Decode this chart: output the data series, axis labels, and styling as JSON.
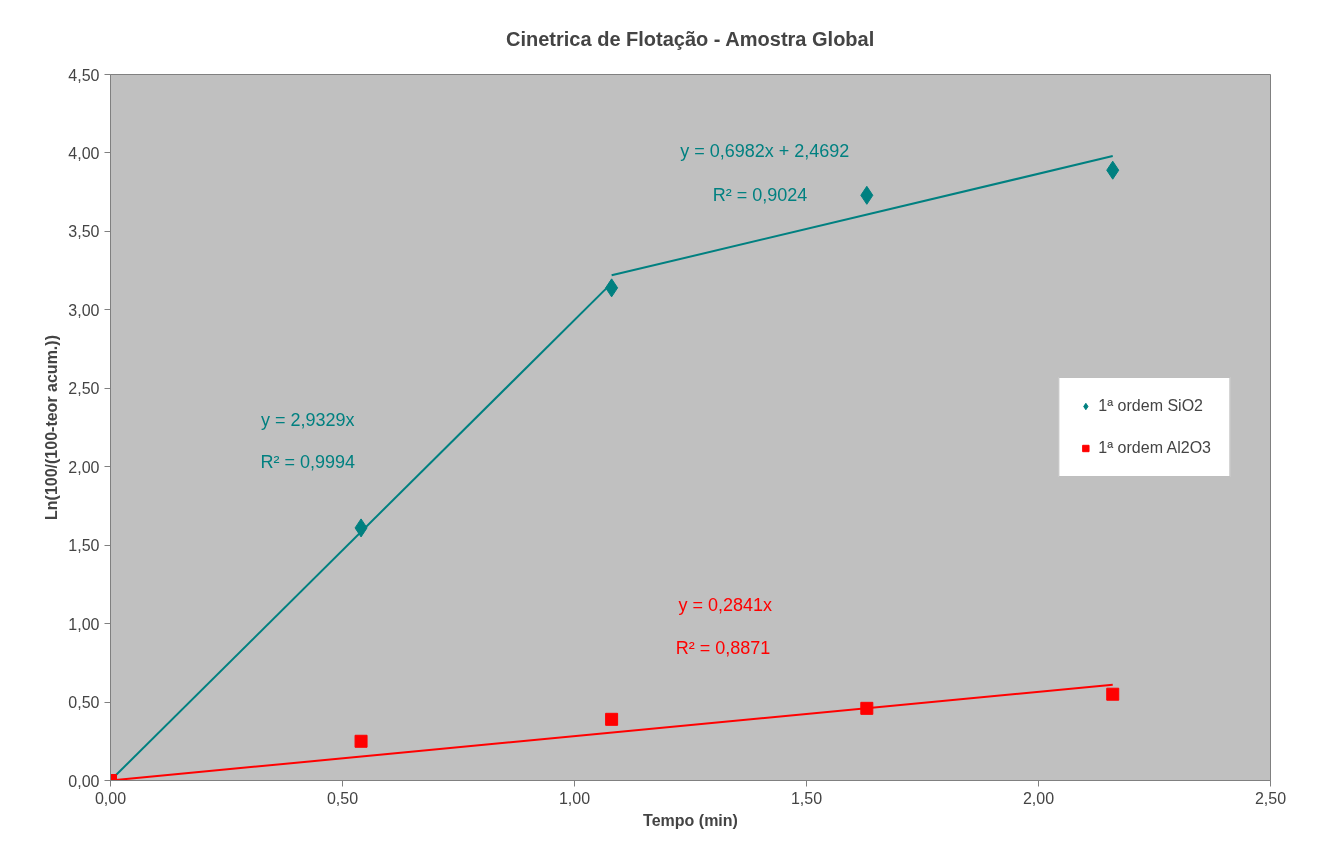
{
  "chart_data": {
    "type": "scatter",
    "title": "Cinetrica de Flotação - Amostra Global",
    "xlabel": "Tempo (min)",
    "ylabel": "Ln(100/(100-teor acum.))",
    "xlim": [
      0,
      2.5
    ],
    "ylim": [
      0,
      4.5
    ],
    "xticks": [
      {
        "value": 0,
        "label": "0,00"
      },
      {
        "value": 0.5,
        "label": "0,50"
      },
      {
        "value": 1,
        "label": "1,00"
      },
      {
        "value": 1.5,
        "label": "1,50"
      },
      {
        "value": 2,
        "label": "2,00"
      },
      {
        "value": 2.5,
        "label": "2,50"
      }
    ],
    "yticks": [
      {
        "value": 0,
        "label": "0,00"
      },
      {
        "value": 0.5,
        "label": "0,50"
      },
      {
        "value": 1,
        "label": "1,00"
      },
      {
        "value": 1.5,
        "label": "1,50"
      },
      {
        "value": 2,
        "label": "2,00"
      },
      {
        "value": 2.5,
        "label": "2,50"
      },
      {
        "value": 3,
        "label": "3,00"
      },
      {
        "value": 3.5,
        "label": "3,50"
      },
      {
        "value": 4,
        "label": "4,00"
      },
      {
        "value": 4.5,
        "label": "4,50"
      }
    ],
    "grid": false,
    "legend": "right",
    "series": [
      {
        "type": "line",
        "color": "#008080",
        "x": [
          0,
          1.08
        ],
        "values": [
          0,
          3.17
        ]
      },
      {
        "type": "line",
        "color": "#008080",
        "x": [
          1.08,
          2.16
        ],
        "values": [
          3.22,
          3.98
        ]
      },
      {
        "type": "line",
        "color": "#ff0000",
        "x": [
          0,
          2.16
        ],
        "values": [
          0,
          0.61
        ]
      },
      {
        "name": "1ª ordem SiO2",
        "color": "#008080",
        "marker": "diamond",
        "x": [
          0.54,
          1.08,
          1.63,
          2.16
        ],
        "values": [
          1.61,
          3.14,
          3.73,
          3.89
        ]
      },
      {
        "name": "1ª ordem Al2O3",
        "color": "#ff0000",
        "marker": "square",
        "x": [
          0,
          0.54,
          1.08,
          1.63,
          2.16
        ],
        "values": [
          0,
          0.25,
          0.39,
          0.46,
          0.55
        ]
      }
    ],
    "annotations": [
      "y = 2,9329x",
      "R² = 0,9994",
      "y = 0,6982x + 2,4692",
      "R² = 0,9024",
      "y = 0,2841x",
      "R² = 0,8871"
    ]
  }
}
